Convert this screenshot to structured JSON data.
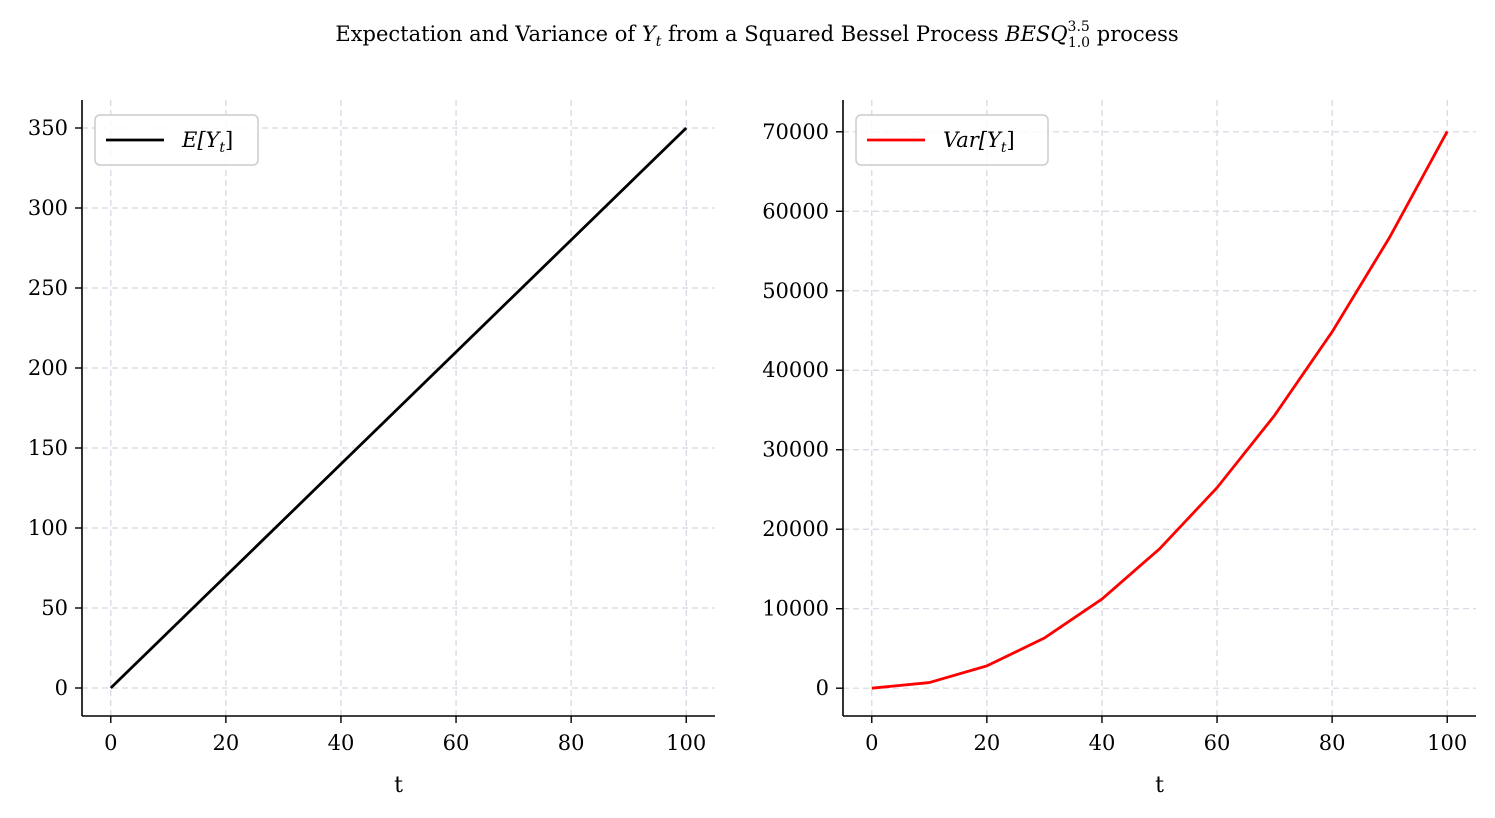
{
  "figure": {
    "title_parts": {
      "pre": "Expectation and Variance of ",
      "var": "Y",
      "var_sub": "t",
      "mid": " from a Squared Bessel Process ",
      "proc": "BESQ",
      "proc_sup": "3.5",
      "proc_sub": "1.0",
      "post": " process"
    }
  },
  "chart_data": [
    {
      "type": "line",
      "xlabel": "t",
      "ylabel": "",
      "xlim": [
        -5,
        105
      ],
      "ylim": [
        -17.5,
        367.5
      ],
      "x_ticks": [
        0,
        20,
        40,
        60,
        80,
        100
      ],
      "y_ticks": [
        0,
        50,
        100,
        150,
        200,
        250,
        300,
        350
      ],
      "grid": true,
      "legend_position": "upper-left",
      "legend_label": {
        "main": "E[Y",
        "sub": "t",
        "close": "]"
      },
      "series": [
        {
          "name": "E[Y_t]",
          "color": "#000000",
          "x": [
            0,
            10,
            20,
            30,
            40,
            50,
            60,
            70,
            80,
            90,
            100
          ],
          "y": [
            0,
            35,
            70,
            105,
            140,
            175,
            210,
            245,
            280,
            315,
            350
          ]
        }
      ]
    },
    {
      "type": "line",
      "xlabel": "t",
      "ylabel": "",
      "xlim": [
        -5,
        105
      ],
      "ylim": [
        -3500,
        74000
      ],
      "x_ticks": [
        0,
        20,
        40,
        60,
        80,
        100
      ],
      "y_ticks": [
        0,
        10000,
        20000,
        30000,
        40000,
        50000,
        60000,
        70000
      ],
      "grid": true,
      "legend_position": "upper-left",
      "legend_label": {
        "main": "Var[Y",
        "sub": "t",
        "close": "]"
      },
      "series": [
        {
          "name": "Var[Y_t]",
          "color": "#ff0000",
          "x": [
            0,
            10,
            20,
            30,
            40,
            50,
            60,
            70,
            80,
            90,
            100
          ],
          "y": [
            0,
            704,
            2808,
            6312,
            11216,
            17520,
            25224,
            34328,
            44832,
            56736,
            70040
          ]
        }
      ]
    }
  ]
}
